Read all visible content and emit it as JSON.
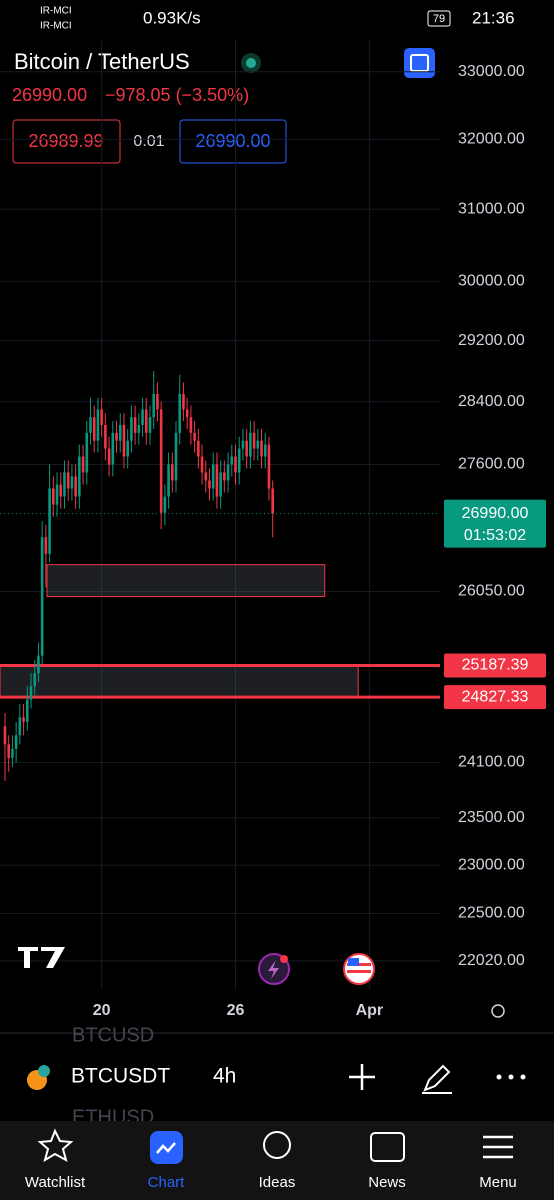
{
  "status_bar": {
    "carrier1": "IR-MCI",
    "carrier2": "IR-MCI",
    "speed": "0.93K/s",
    "battery": "79",
    "time": "21:36"
  },
  "header": {
    "price": "26990.00",
    "change": "−978.05 (−3.50%)",
    "sell": "26989.99",
    "spread": "0.01",
    "buy": "26990.00"
  },
  "chart_data": {
    "type": "candlestick",
    "title": "Bitcoin / TetherUS",
    "log_scale": true,
    "grid": true,
    "up_color": "#089981",
    "down_color": "#f23645",
    "x": [
      0,
      1,
      2,
      3,
      4,
      5,
      6,
      7,
      8,
      9,
      10,
      11,
      12,
      13,
      14,
      15,
      16,
      17,
      18,
      19,
      20,
      21,
      22,
      23,
      24,
      25,
      26,
      27,
      28,
      29,
      30,
      31,
      32,
      33,
      34,
      35,
      36,
      37,
      38,
      39,
      40,
      41,
      42,
      43,
      44,
      45,
      46,
      47,
      48,
      49,
      50,
      51,
      52,
      53,
      54,
      55,
      56,
      57,
      58,
      59,
      60,
      61,
      62,
      63,
      64,
      65,
      66,
      67,
      68,
      69,
      70,
      71,
      72
    ],
    "open": [
      24500,
      24300,
      24150,
      24250,
      24400,
      24600,
      24550,
      24800,
      24950,
      25100,
      25300,
      26700,
      26500,
      27300,
      27100,
      27350,
      27200,
      27500,
      27300,
      27450,
      27200,
      27700,
      27500,
      28000,
      28200,
      27900,
      28300,
      28100,
      27800,
      27600,
      28000,
      27900,
      28100,
      27700,
      27900,
      28200,
      28000,
      28100,
      28300,
      28000,
      28200,
      28500,
      28300,
      27000,
      27200,
      27600,
      27400,
      28000,
      28500,
      28300,
      28200,
      28000,
      27900,
      27700,
      27500,
      27400,
      27300,
      27600,
      27200,
      27500,
      27400,
      27600,
      27700,
      27500,
      27800,
      27900,
      27700,
      28000,
      27800,
      27900,
      27700,
      27850,
      27300
    ],
    "high": [
      24650,
      24400,
      24400,
      24550,
      24750,
      24750,
      24950,
      25100,
      25250,
      25450,
      26900,
      26850,
      27600,
      27450,
      27500,
      27500,
      27650,
      27650,
      27600,
      27600,
      27850,
      27850,
      28150,
      28450,
      28350,
      28450,
      28450,
      28250,
      27950,
      28150,
      28150,
      28250,
      28250,
      28050,
      28350,
      28350,
      28250,
      28450,
      28450,
      28350,
      28800,
      28650,
      28400,
      27350,
      27750,
      27750,
      28150,
      28750,
      28650,
      28450,
      28350,
      28150,
      28050,
      27850,
      27650,
      27550,
      27750,
      27750,
      27650,
      27650,
      27750,
      27850,
      27850,
      27950,
      28050,
      28050,
      28150,
      28150,
      28050,
      28050,
      28000,
      27950,
      27400
    ],
    "low": [
      23900,
      24000,
      24050,
      24100,
      24300,
      24400,
      24450,
      24700,
      24850,
      25000,
      25200,
      26100,
      26400,
      26950,
      26950,
      27050,
      27050,
      27150,
      27150,
      27050,
      27050,
      27350,
      27350,
      27850,
      27750,
      27750,
      27950,
      27650,
      27450,
      27450,
      27750,
      27750,
      27550,
      27550,
      27750,
      27850,
      27850,
      27950,
      27850,
      27850,
      28050,
      28150,
      26800,
      26850,
      27050,
      27250,
      27250,
      27850,
      28150,
      28050,
      27850,
      27750,
      27550,
      27350,
      27250,
      27150,
      27150,
      27050,
      27050,
      27250,
      27250,
      27450,
      27350,
      27350,
      27650,
      27550,
      27550,
      27650,
      27650,
      27550,
      27550,
      27150,
      26700
    ],
    "close": [
      24300,
      24150,
      24250,
      24400,
      24600,
      24550,
      24800,
      24950,
      25100,
      25300,
      26700,
      26500,
      27300,
      27100,
      27350,
      27200,
      27500,
      27300,
      27450,
      27200,
      27700,
      27500,
      28000,
      28200,
      27900,
      28300,
      28100,
      27800,
      27600,
      28000,
      27900,
      28100,
      27700,
      27900,
      28200,
      28000,
      28100,
      28300,
      28000,
      28200,
      28500,
      28300,
      27000,
      27200,
      27600,
      27400,
      28000,
      28500,
      28300,
      28200,
      28000,
      27900,
      27700,
      27500,
      27400,
      27300,
      27600,
      27200,
      27500,
      27400,
      27600,
      27700,
      27500,
      27800,
      27900,
      27700,
      28000,
      27800,
      27900,
      27700,
      27850,
      27300,
      26990
    ],
    "xlim": [
      -1.34,
      117
    ],
    "xticks": [
      {
        "value": 26,
        "label": "20"
      },
      {
        "value": 62,
        "label": "26"
      },
      {
        "value": 98,
        "label": "Apr"
      }
    ],
    "ylim": [
      21730,
      33480
    ],
    "yticks": [
      {
        "value": 33000,
        "label": "33000.00"
      },
      {
        "value": 32000,
        "label": "32000.00"
      },
      {
        "value": 31000,
        "label": "31000.00"
      },
      {
        "value": 30000,
        "label": "30000.00"
      },
      {
        "value": 29200,
        "label": "29200.00"
      },
      {
        "value": 28400,
        "label": "28400.00"
      },
      {
        "value": 27600,
        "label": "27600.00"
      },
      {
        "value": 26050,
        "label": "26050.00"
      },
      {
        "value": 24100,
        "label": "24100.00"
      },
      {
        "value": 23500,
        "label": "23500.00"
      },
      {
        "value": 23000,
        "label": "23000.00"
      },
      {
        "value": 22500,
        "label": "22500.00"
      },
      {
        "value": 22020,
        "label": "22020.00"
      }
    ],
    "last_price": {
      "value": 26990,
      "label": "26990.00"
    },
    "countdown": "01:53:02",
    "levels": [
      25187.39,
      24827.33
    ],
    "level_color": "#f23645",
    "zones": [
      {
        "low": 25990,
        "high": 26370,
        "x0": 11.3,
        "x1": 86
      },
      {
        "low": 24827.33,
        "high": 25187.39,
        "x0": -1.34,
        "x1": 95
      }
    ]
  },
  "symbol_bar": {
    "prev": "BTCUSD",
    "symbol": "BTCUSDT",
    "interval": "4h",
    "next": "ETHUSD"
  },
  "nav": [
    "Watchlist",
    "Chart",
    "Ideas",
    "News",
    "Menu"
  ]
}
